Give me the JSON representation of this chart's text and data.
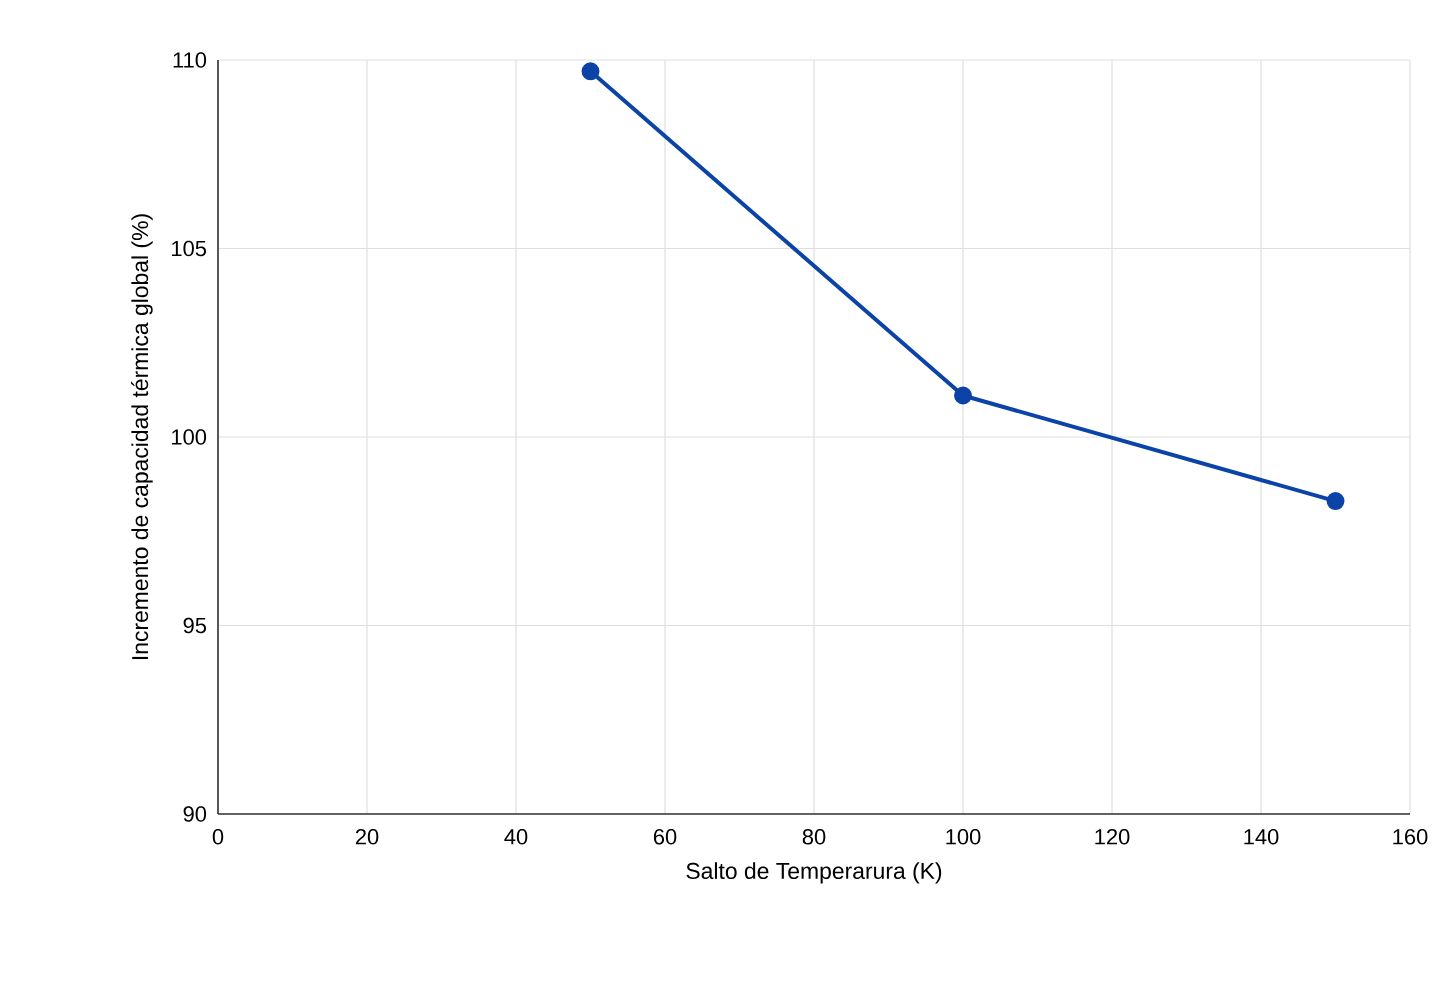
{
  "chart_data": {
    "type": "line",
    "xlabel": "Salto de Temperarura (K)",
    "ylabel": "Incremento de capacidad térmica global (%)",
    "x": [
      50,
      100,
      150
    ],
    "series": [
      {
        "color": "#0b44a6",
        "values": [
          109.7,
          101.1,
          98.3
        ]
      }
    ],
    "xlim": [
      0,
      160
    ],
    "xticks": [
      0,
      20,
      40,
      60,
      80,
      100,
      120,
      140,
      160
    ],
    "ylim": [
      90,
      110
    ],
    "yticks": [
      90,
      95,
      100,
      105,
      110
    ],
    "grid": true,
    "marker": "circle",
    "line_style": "solid"
  }
}
